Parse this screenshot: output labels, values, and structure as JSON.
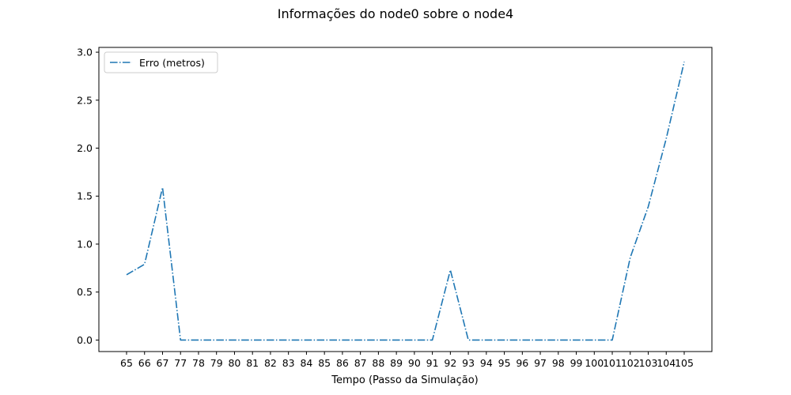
{
  "chart_data": {
    "type": "line",
    "title": "Informações do node0 sobre o node4",
    "xlabel": "Tempo (Passo da Simulação)",
    "ylabel": "",
    "categories": [
      "65",
      "66",
      "67",
      "77",
      "78",
      "79",
      "80",
      "81",
      "82",
      "83",
      "84",
      "85",
      "86",
      "87",
      "88",
      "89",
      "90",
      "91",
      "92",
      "93",
      "94",
      "95",
      "96",
      "97",
      "98",
      "99",
      "100",
      "101",
      "102",
      "103",
      "104",
      "105"
    ],
    "series": [
      {
        "name": "Erro (metros)",
        "color": "#1f77b4",
        "line_style": "dashdot",
        "values": [
          0.68,
          0.79,
          1.59,
          0.0,
          0.0,
          0.0,
          0.0,
          0.0,
          0.0,
          0.0,
          0.0,
          0.0,
          0.0,
          0.0,
          0.0,
          0.0,
          0.0,
          0.0,
          0.73,
          0.0,
          0.0,
          0.0,
          0.0,
          0.0,
          0.0,
          0.0,
          0.0,
          0.0,
          0.86,
          1.39,
          2.1,
          2.9
        ]
      }
    ],
    "ylim": [
      -0.12,
      3.05
    ],
    "yticks": [
      0.0,
      0.5,
      1.0,
      1.5,
      2.0,
      2.5,
      3.0
    ],
    "ytick_labels": [
      "0.0",
      "0.5",
      "1.0",
      "1.5",
      "2.0",
      "2.5",
      "3.0"
    ],
    "grid": false,
    "legend_position": "upper left"
  }
}
